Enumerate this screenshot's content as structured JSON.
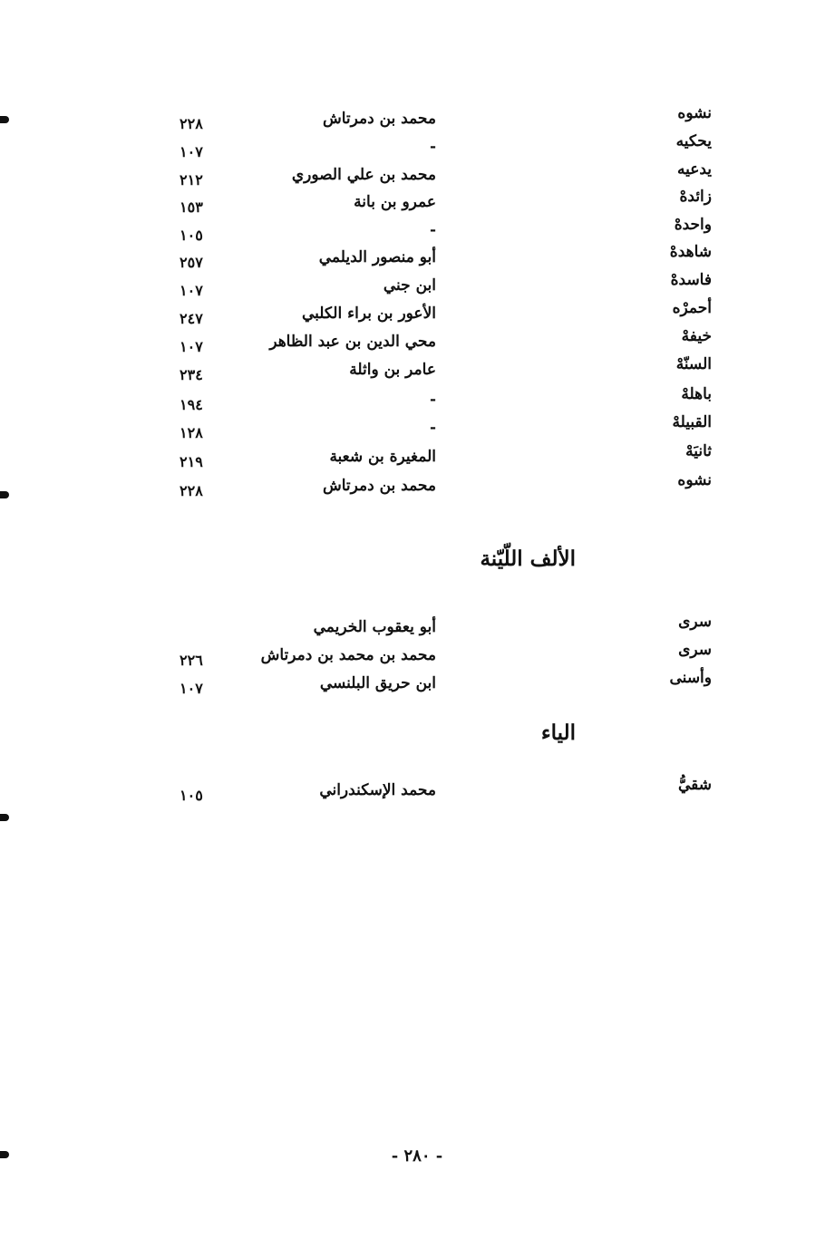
{
  "section1": {
    "rows": [
      {
        "word": "نشوه",
        "name": "محمد بن دمرتاش",
        "page": "٢٢٨"
      },
      {
        "word": "يحكيه",
        "name": "-",
        "page": "١٠٧"
      },
      {
        "word": "يدعيه",
        "name": "محمد بن علي الصوري",
        "page": "٢١٢"
      },
      {
        "word": "زائدهْ",
        "name": "عمرو بن بانة",
        "page": "١٥٣"
      },
      {
        "word": "واحدهْ",
        "name": "-",
        "page": "١٠٥"
      },
      {
        "word": "شاهدهْ",
        "name": "أبو منصور الديلمي",
        "page": "٢٥٧"
      },
      {
        "word": "فاسدهْ",
        "name": "ابن جني",
        "page": "١٠٧"
      },
      {
        "word": "أحمرْه",
        "name": "الأعور بن براء الكلبي",
        "page": "٢٤٧"
      },
      {
        "word": "خيفهْ",
        "name": "محي الدين بن عبد الظاهر",
        "page": "١٠٧"
      },
      {
        "word": "السنّهْ",
        "name": "عامر بن واثلة",
        "page": "٢٣٤"
      },
      {
        "word": "باهلهْ",
        "name": "-",
        "page": "١٩٤"
      },
      {
        "word": "القبيلهْ",
        "name": "-",
        "page": "١٢٨"
      },
      {
        "word": "ثانيَهْ",
        "name": "المغيرة بن شعبة",
        "page": "٢١٩"
      },
      {
        "word": "نشوه",
        "name": "محمد بن دمرتاش",
        "page": "٢٢٨"
      }
    ]
  },
  "section2": {
    "heading": "الألف اللّيّنة",
    "rows": [
      {
        "word": "سرى",
        "name": "أبو يعقوب الخريمي",
        "page": ""
      },
      {
        "word": "سرى",
        "name": "محمد بن محمد بن دمرتاش",
        "page": "٢٢٦"
      },
      {
        "word": "وأسنى",
        "name": "ابن حريق البلنسي",
        "page": "١٠٧"
      }
    ]
  },
  "section3": {
    "heading": "الياء",
    "rows": [
      {
        "word": "شقيُّ",
        "name": "محمد الإسكندراني",
        "page": "١٠٥"
      }
    ]
  },
  "page_number": "- ٢٨٠ -"
}
